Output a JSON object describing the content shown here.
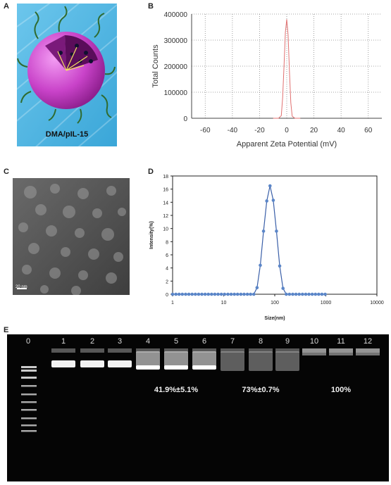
{
  "panels": {
    "A": {
      "letter": "A",
      "caption": "DMA/pIL-15"
    },
    "B": {
      "letter": "B"
    },
    "C": {
      "letter": "C",
      "scale_bar": "20 nm"
    },
    "D": {
      "letter": "D"
    },
    "E": {
      "letter": "E"
    }
  },
  "colors": {
    "zeta_line": "#e07070",
    "dls_line": "#3a5fa8",
    "dls_marker": "#5b86c8",
    "nanoparticle": "#c040c0",
    "background_blue": "#4fb4e0"
  },
  "chart_data": [
    {
      "type": "line",
      "panel": "B",
      "title": "",
      "xlabel": "Apparent Zeta Potential (mV)",
      "ylabel": "Total Counts",
      "xlim": [
        -70,
        70
      ],
      "ylim": [
        0,
        400000
      ],
      "x_ticks": [
        "-60",
        "-40",
        "-20",
        "0",
        "20",
        "40",
        "60"
      ],
      "y_ticks": [
        "0",
        "100000",
        "200000",
        "300000",
        "400000"
      ],
      "grid": true,
      "series": [
        {
          "x": [
            -10,
            -6,
            -4,
            -3,
            -2,
            -1,
            0,
            1,
            2,
            3,
            4,
            6,
            10
          ],
          "y": [
            0,
            0,
            10000,
            80000,
            200000,
            330000,
            380000,
            320000,
            180000,
            60000,
            8000,
            0,
            0
          ]
        }
      ]
    },
    {
      "type": "line",
      "panel": "D",
      "title": "",
      "xlabel": "Size(nm)",
      "ylabel": "Intensity(%)",
      "xscale": "log",
      "xlim": [
        1,
        10000
      ],
      "ylim": [
        0,
        18
      ],
      "x_ticks": [
        "1",
        "10",
        "100",
        "1000",
        "10000"
      ],
      "y_ticks": [
        "0",
        "2",
        "4",
        "6",
        "8",
        "10",
        "12",
        "14",
        "16",
        "18"
      ],
      "series": [
        {
          "x": [
            1,
            1.16,
            1.34,
            1.55,
            1.8,
            2.08,
            2.41,
            2.79,
            3.23,
            3.74,
            4.33,
            5.01,
            5.8,
            6.71,
            7.77,
            9,
            10.4,
            12.1,
            14,
            16.2,
            18.7,
            21.7,
            25.1,
            29.1,
            33.6,
            38.9,
            45,
            52.1,
            60.3,
            69.8,
            80.8,
            93.5,
            108,
            125,
            145,
            168,
            194,
            225,
            260,
            301,
            349,
            404,
            467,
            541,
            626,
            724,
            838,
            970
          ],
          "y": [
            0,
            0,
            0,
            0,
            0,
            0,
            0,
            0,
            0,
            0,
            0,
            0,
            0,
            0,
            0,
            0,
            0,
            0,
            0,
            0,
            0,
            0,
            0,
            0,
            0,
            0,
            1.0,
            4.4,
            9.6,
            14.2,
            16.5,
            14.3,
            9.6,
            4.3,
            0.9,
            0,
            0,
            0,
            0,
            0,
            0,
            0,
            0,
            0,
            0,
            0,
            0,
            0
          ]
        }
      ]
    }
  ],
  "gel": {
    "lanes": [
      "0",
      "1",
      "2",
      "3",
      "4",
      "5",
      "6",
      "7",
      "8",
      "9",
      "10",
      "11",
      "12"
    ],
    "annotations": [
      "41.9%±5.1%",
      "73%±0.7%",
      "100%"
    ]
  }
}
